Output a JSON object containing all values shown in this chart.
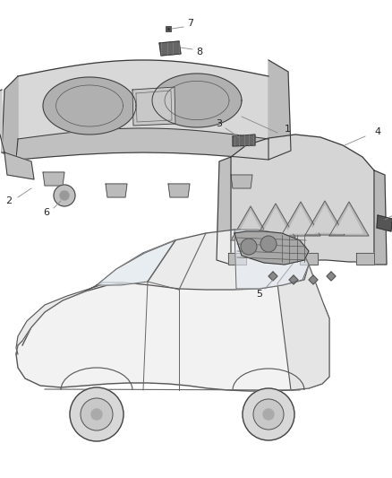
{
  "bg_color": "#ffffff",
  "fig_width": 4.38,
  "fig_height": 5.33,
  "dpi": 100,
  "lc": "#3a3a3a",
  "lw": 0.8,
  "fill_light": "#e0e0e0",
  "fill_mid": "#c8c8c8",
  "fill_dark": "#aaaaaa",
  "label_fs": 7.5
}
